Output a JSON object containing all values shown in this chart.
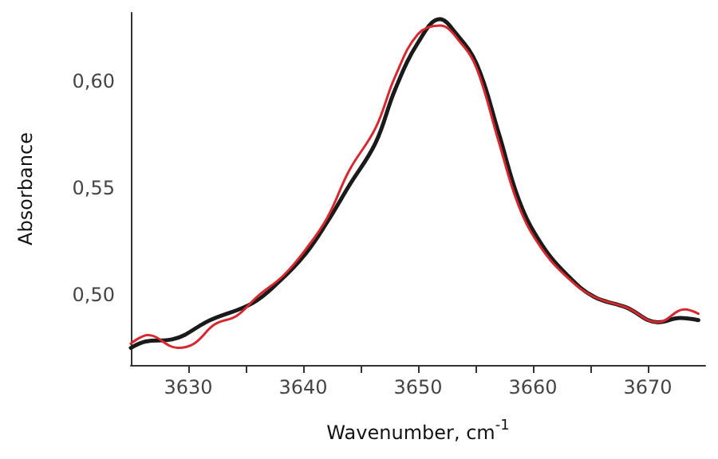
{
  "chart_data": {
    "type": "line",
    "xlabel": "Wavenumber, cm$^{-1}$",
    "ylabel": "Absorbance",
    "xlim": [
      3625,
      3675
    ],
    "xticks": [
      3630,
      {
        "value": 3635,
        "label": null
      },
      3640,
      {
        "value": 3645,
        "label": null
      },
      3650,
      {
        "value": 3655,
        "label": null
      },
      3660,
      {
        "value": 3665,
        "label": null
      },
      3670
    ],
    "ylim": [
      0.467,
      0.632
    ],
    "yticks": [
      {
        "value": 0.5,
        "label": "0,50"
      },
      {
        "value": 0.55,
        "label": "0,55"
      },
      {
        "value": 0.6,
        "label": "0,60"
      }
    ],
    "grid": false,
    "marker": "none",
    "line_style": "solid",
    "series": [
      {
        "color": "#1a1a1a",
        "x": [
          3625,
          3626.3,
          3628.6,
          3631.9,
          3635.6,
          3637.9,
          3640.2,
          3642.1,
          3644.0,
          3646.3,
          3648.0,
          3650.0,
          3651.9,
          3653.2,
          3655.1,
          3657.0,
          3658.8,
          3660.7,
          3663.0,
          3665.3,
          3668.1,
          3670.9,
          3672.8,
          3674.4
        ],
        "values": [
          0.475,
          0.478,
          0.479,
          0.488,
          0.496,
          0.506,
          0.519,
          0.534,
          0.551,
          0.571,
          0.596,
          0.618,
          0.629,
          0.623,
          0.608,
          0.576,
          0.544,
          0.524,
          0.509,
          0.499,
          0.494,
          0.487,
          0.489,
          0.488
        ]
      },
      {
        "color": "#d7282f",
        "x": [
          3625,
          3626.5,
          3629.1,
          3630.5,
          3632.3,
          3634.2,
          3636.0,
          3638.3,
          3640.2,
          3642.1,
          3644.0,
          3646.3,
          3648.0,
          3650.0,
          3651.9,
          3653.7,
          3655.1,
          3657.0,
          3658.8,
          3660.7,
          3663.0,
          3665.3,
          3668.1,
          3670.9,
          3673.2,
          3674.4
        ],
        "values": [
          0.477,
          0.481,
          0.475,
          0.477,
          0.486,
          0.49,
          0.499,
          0.509,
          0.521,
          0.536,
          0.558,
          0.578,
          0.602,
          0.622,
          0.626,
          0.618,
          0.606,
          0.572,
          0.541,
          0.522,
          0.508,
          0.499,
          0.494,
          0.487,
          0.493,
          0.491
        ]
      }
    ]
  }
}
